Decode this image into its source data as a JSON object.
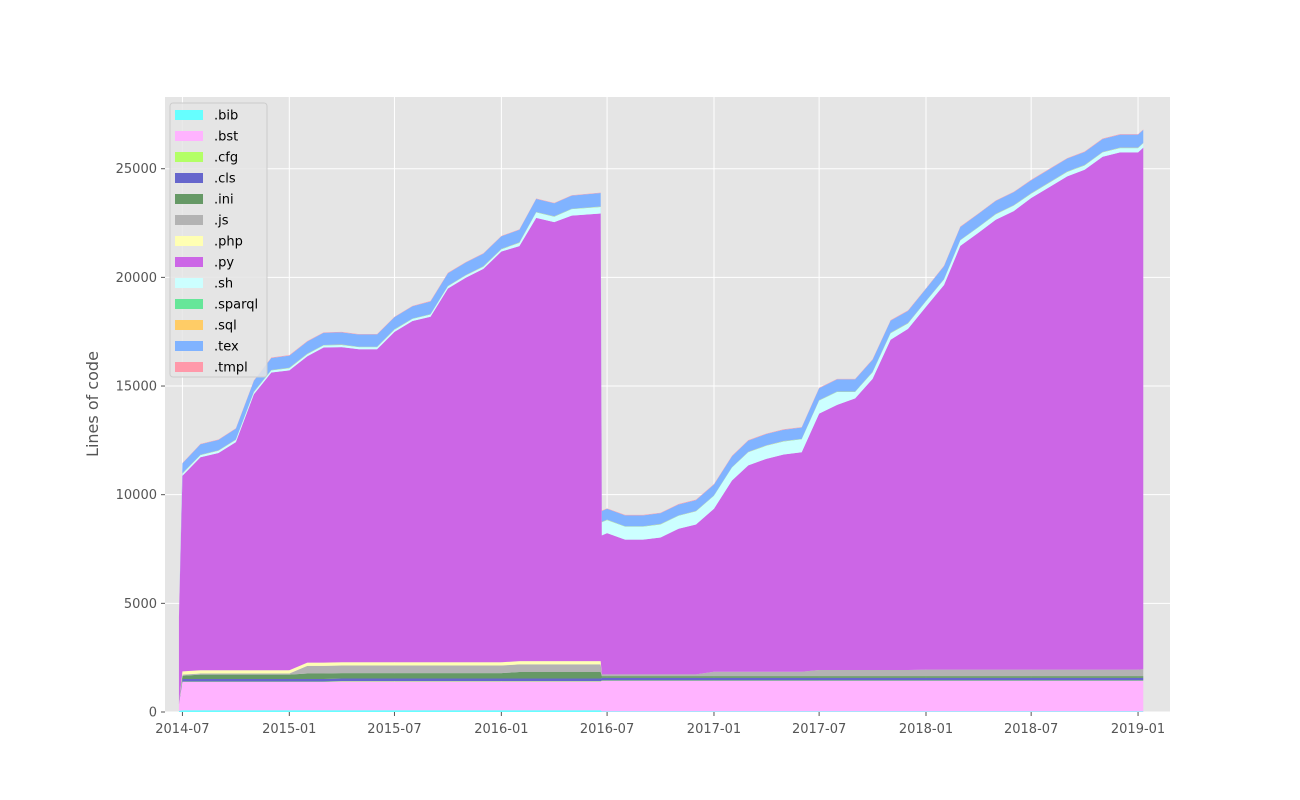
{
  "chart_data": {
    "type": "area",
    "stacked": true,
    "title": "",
    "xlabel": "",
    "ylabel": "Lines of code",
    "x_axis_type": "date",
    "xlim": [
      "2014-06-01",
      "2019-02-25"
    ],
    "ylim": [
      0,
      28300
    ],
    "x_ticks": [
      "2014-07-01",
      "2015-01-01",
      "2015-07-01",
      "2016-01-01",
      "2016-07-01",
      "2017-01-01",
      "2017-07-01",
      "2018-01-01",
      "2018-07-01",
      "2019-01-01"
    ],
    "x_tick_labels": [
      "2014-07",
      "2015-01",
      "2015-07",
      "2016-01",
      "2016-07",
      "2017-01",
      "2017-07",
      "2018-01",
      "2018-07",
      "2019-01"
    ],
    "y_ticks": [
      0,
      5000,
      10000,
      15000,
      20000,
      25000
    ],
    "y_tick_labels": [
      "0",
      "5000",
      "10000",
      "15000",
      "20000",
      "25000"
    ],
    "grid": true,
    "legend_position": "upper-left",
    "x": [
      "2014-06-25",
      "2014-07-01",
      "2014-08-01",
      "2014-09-01",
      "2014-10-01",
      "2014-11-01",
      "2014-12-01",
      "2015-01-01",
      "2015-02-01",
      "2015-03-01",
      "2015-04-01",
      "2015-05-01",
      "2015-06-01",
      "2015-07-01",
      "2015-08-01",
      "2015-09-01",
      "2015-10-01",
      "2015-11-01",
      "2015-12-01",
      "2016-01-01",
      "2016-02-01",
      "2016-03-01",
      "2016-04-01",
      "2016-05-01",
      "2016-06-20",
      "2016-06-22",
      "2016-07-01",
      "2016-08-01",
      "2016-09-01",
      "2016-10-01",
      "2016-11-01",
      "2016-12-01",
      "2017-01-01",
      "2017-02-01",
      "2017-03-01",
      "2017-04-01",
      "2017-05-01",
      "2017-06-01",
      "2017-07-01",
      "2017-08-01",
      "2017-09-01",
      "2017-10-01",
      "2017-11-01",
      "2017-12-01",
      "2018-01-01",
      "2018-02-01",
      "2018-03-01",
      "2018-04-01",
      "2018-05-01",
      "2018-06-01",
      "2018-07-01",
      "2018-08-01",
      "2018-09-01",
      "2018-10-01",
      "2018-11-01",
      "2018-12-01",
      "2019-01-01",
      "2019-01-10"
    ],
    "series": [
      {
        "name": ".bib",
        "color": "#66ffff",
        "values": [
          50,
          80,
          80,
          80,
          80,
          80,
          80,
          80,
          80,
          80,
          80,
          80,
          80,
          80,
          80,
          80,
          80,
          80,
          80,
          80,
          80,
          80,
          80,
          80,
          80,
          30,
          30,
          30,
          30,
          30,
          30,
          30,
          30,
          30,
          30,
          30,
          30,
          30,
          30,
          30,
          30,
          30,
          30,
          30,
          30,
          30,
          30,
          30,
          30,
          30,
          30,
          30,
          30,
          30,
          30,
          30,
          30,
          30
        ]
      },
      {
        "name": ".bst",
        "color": "#ffb3ff",
        "values": [
          300,
          1300,
          1300,
          1300,
          1300,
          1300,
          1300,
          1300,
          1300,
          1300,
          1320,
          1320,
          1320,
          1320,
          1320,
          1320,
          1320,
          1320,
          1320,
          1320,
          1320,
          1320,
          1320,
          1320,
          1320,
          1400,
          1400,
          1400,
          1400,
          1400,
          1400,
          1400,
          1400,
          1400,
          1400,
          1400,
          1400,
          1400,
          1400,
          1400,
          1400,
          1400,
          1400,
          1400,
          1400,
          1400,
          1400,
          1400,
          1400,
          1400,
          1400,
          1400,
          1400,
          1400,
          1400,
          1400,
          1400,
          1400
        ]
      },
      {
        "name": ".cfg",
        "color": "#b3ff66",
        "values": [
          0,
          20,
          20,
          20,
          20,
          20,
          20,
          20,
          20,
          20,
          20,
          20,
          20,
          20,
          20,
          20,
          20,
          20,
          20,
          20,
          20,
          20,
          20,
          20,
          20,
          20,
          20,
          20,
          20,
          20,
          20,
          20,
          20,
          20,
          20,
          20,
          20,
          20,
          20,
          20,
          20,
          20,
          20,
          20,
          20,
          20,
          20,
          20,
          20,
          20,
          20,
          20,
          20,
          20,
          20,
          20,
          20,
          20
        ]
      },
      {
        "name": ".cls",
        "color": "#6666cc",
        "values": [
          0,
          120,
          120,
          120,
          120,
          120,
          120,
          120,
          120,
          120,
          120,
          120,
          120,
          120,
          120,
          120,
          120,
          120,
          120,
          120,
          120,
          120,
          120,
          120,
          120,
          120,
          120,
          120,
          120,
          120,
          120,
          120,
          120,
          120,
          120,
          120,
          120,
          120,
          120,
          120,
          120,
          120,
          120,
          120,
          120,
          120,
          120,
          120,
          120,
          120,
          120,
          120,
          120,
          120,
          120,
          120,
          120,
          120
        ]
      },
      {
        "name": ".ini",
        "color": "#669966",
        "values": [
          0,
          150,
          200,
          200,
          200,
          200,
          200,
          200,
          250,
          250,
          250,
          250,
          250,
          250,
          250,
          250,
          250,
          250,
          250,
          250,
          300,
          300,
          300,
          300,
          300,
          80,
          80,
          80,
          80,
          80,
          80,
          80,
          80,
          80,
          80,
          80,
          80,
          80,
          80,
          80,
          80,
          80,
          80,
          80,
          80,
          80,
          80,
          80,
          80,
          80,
          80,
          80,
          80,
          80,
          80,
          80,
          80,
          80
        ]
      },
      {
        "name": ".js",
        "color": "#b3b3b3",
        "values": [
          0,
          50,
          50,
          50,
          50,
          50,
          50,
          50,
          350,
          350,
          350,
          350,
          350,
          350,
          350,
          350,
          350,
          350,
          350,
          350,
          350,
          350,
          350,
          350,
          350,
          80,
          80,
          80,
          80,
          80,
          80,
          80,
          200,
          200,
          200,
          200,
          200,
          200,
          280,
          280,
          280,
          280,
          280,
          280,
          300,
          300,
          300,
          300,
          300,
          300,
          300,
          300,
          300,
          300,
          300,
          300,
          300,
          320
        ]
      },
      {
        "name": ".php",
        "color": "#ffffb3",
        "values": [
          0,
          150,
          150,
          150,
          150,
          150,
          150,
          150,
          150,
          150,
          150,
          150,
          150,
          150,
          150,
          150,
          150,
          150,
          150,
          150,
          150,
          150,
          150,
          150,
          150,
          0,
          0,
          0,
          0,
          0,
          0,
          0,
          0,
          0,
          0,
          0,
          0,
          0,
          0,
          0,
          0,
          0,
          0,
          0,
          0,
          0,
          0,
          0,
          0,
          0,
          0,
          0,
          0,
          0,
          0,
          0,
          0,
          0
        ]
      },
      {
        "name": ".py",
        "color": "#cc66e6",
        "values": [
          4000,
          9000,
          9800,
          10000,
          10500,
          12700,
          13700,
          13800,
          14100,
          14500,
          14500,
          14400,
          14400,
          15200,
          15700,
          15900,
          17200,
          17700,
          18100,
          18900,
          19100,
          20400,
          20200,
          20500,
          20600,
          6400,
          6500,
          6200,
          6200,
          6300,
          6700,
          6900,
          7500,
          8800,
          9500,
          9800,
          10000,
          10100,
          11800,
          12200,
          12500,
          13400,
          15200,
          15700,
          16700,
          17700,
          19500,
          20100,
          20700,
          21100,
          21700,
          22200,
          22700,
          23000,
          23600,
          23800,
          23800,
          24000
        ]
      },
      {
        "name": ".sh",
        "color": "#ccffff",
        "values": [
          0,
          100,
          100,
          100,
          100,
          100,
          100,
          100,
          100,
          100,
          100,
          100,
          100,
          100,
          100,
          100,
          100,
          100,
          100,
          100,
          150,
          250,
          250,
          300,
          300,
          600,
          600,
          600,
          600,
          600,
          600,
          600,
          600,
          600,
          600,
          600,
          600,
          600,
          600,
          600,
          300,
          300,
          300,
          250,
          250,
          250,
          250,
          250,
          250,
          250,
          200,
          200,
          200,
          200,
          200,
          200,
          200,
          200
        ]
      },
      {
        "name": ".sparql",
        "color": "#66e699",
        "values": [
          0,
          10,
          10,
          10,
          10,
          10,
          10,
          10,
          10,
          10,
          10,
          10,
          10,
          10,
          10,
          10,
          10,
          10,
          10,
          10,
          10,
          10,
          10,
          10,
          10,
          10,
          10,
          10,
          10,
          10,
          10,
          10,
          10,
          10,
          10,
          10,
          10,
          10,
          10,
          10,
          10,
          10,
          10,
          10,
          10,
          10,
          10,
          10,
          10,
          10,
          10,
          10,
          10,
          10,
          10,
          10,
          10,
          10
        ]
      },
      {
        "name": ".sql",
        "color": "#ffcc66",
        "values": [
          0,
          10,
          10,
          10,
          10,
          10,
          10,
          10,
          10,
          10,
          10,
          10,
          10,
          10,
          10,
          10,
          10,
          10,
          10,
          10,
          10,
          10,
          10,
          10,
          10,
          10,
          10,
          10,
          10,
          10,
          10,
          10,
          10,
          10,
          10,
          10,
          10,
          10,
          10,
          10,
          10,
          10,
          10,
          10,
          10,
          10,
          10,
          10,
          10,
          10,
          10,
          10,
          10,
          10,
          10,
          10,
          10,
          10
        ]
      },
      {
        "name": ".tex",
        "color": "#80b3ff",
        "values": [
          0,
          450,
          480,
          480,
          500,
          500,
          550,
          560,
          560,
          560,
          560,
          560,
          560,
          560,
          560,
          580,
          580,
          580,
          580,
          580,
          580,
          600,
          600,
          600,
          620,
          500,
          500,
          500,
          500,
          500,
          500,
          500,
          500,
          500,
          520,
          520,
          520,
          520,
          550,
          560,
          560,
          560,
          560,
          560,
          560,
          600,
          600,
          600,
          600,
          600,
          600,
          600,
          600,
          600,
          600,
          600,
          600,
          600
        ]
      },
      {
        "name": ".tmpl",
        "color": "#ff99aa",
        "values": [
          0,
          20,
          20,
          20,
          20,
          20,
          20,
          20,
          20,
          20,
          20,
          20,
          20,
          20,
          20,
          20,
          20,
          20,
          20,
          20,
          20,
          20,
          20,
          20,
          20,
          20,
          20,
          20,
          20,
          20,
          20,
          20,
          20,
          20,
          20,
          20,
          20,
          20,
          20,
          20,
          20,
          20,
          20,
          20,
          20,
          20,
          20,
          20,
          20,
          20,
          20,
          20,
          20,
          20,
          20,
          20,
          20,
          20
        ]
      }
    ]
  }
}
